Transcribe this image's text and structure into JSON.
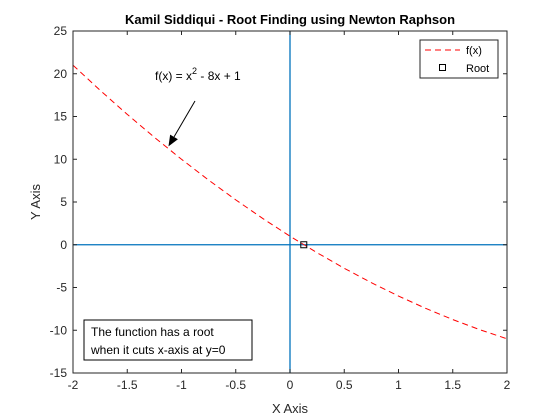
{
  "chart_data": {
    "type": "line",
    "title": "Kamil Siddiqui - Root Finding using Newton Raphson",
    "xlabel": "X Axis",
    "ylabel": "Y Axis",
    "xlim": [
      -2,
      2
    ],
    "ylim": [
      -15,
      25
    ],
    "xticks": [
      -2,
      -1.5,
      -1,
      -0.5,
      0,
      0.5,
      1,
      1.5,
      2
    ],
    "yticks": [
      -15,
      -10,
      -5,
      0,
      5,
      10,
      15,
      20,
      25
    ],
    "xtick_labels": [
      "-2",
      "-1.5",
      "-1",
      "-0.5",
      "0",
      "0.5",
      "1",
      "1.5",
      "2"
    ],
    "ytick_labels": [
      "-15",
      "-10",
      "-5",
      "0",
      "5",
      "10",
      "15",
      "20",
      "25"
    ],
    "grid": false,
    "legend_position": "top-right",
    "series": [
      {
        "name": "f(x)",
        "style": "dashed",
        "color": "#ff0000",
        "x": [
          -2,
          -1.75,
          -1.5,
          -1.25,
          -1,
          -0.75,
          -0.5,
          -0.25,
          0,
          0.25,
          0.5,
          0.75,
          1,
          1.25,
          1.5,
          1.75,
          2
        ],
        "y": [
          21,
          18.0625,
          15.25,
          12.5625,
          10,
          7.5625,
          5.25,
          3.0625,
          1,
          -0.9375,
          -2.75,
          -4.4375,
          -6,
          -7.4375,
          -8.75,
          -9.9375,
          -11
        ]
      },
      {
        "name": "Root",
        "style": "marker-square",
        "color": "#000000",
        "x": [
          0.127
        ],
        "y": [
          0
        ]
      }
    ],
    "reference_lines": {
      "color": "#0072bd",
      "vertical_x": 0,
      "horizontal_y": 0
    },
    "annotations": {
      "arrow_label_parts": [
        "f(x) = x",
        "2",
        " - 8x + 1"
      ],
      "arrow_target": {
        "x": -1.12,
        "y": 11.5
      },
      "textbox_lines": [
        "The function has a root",
        "when it cuts x-axis at y=0"
      ]
    }
  }
}
